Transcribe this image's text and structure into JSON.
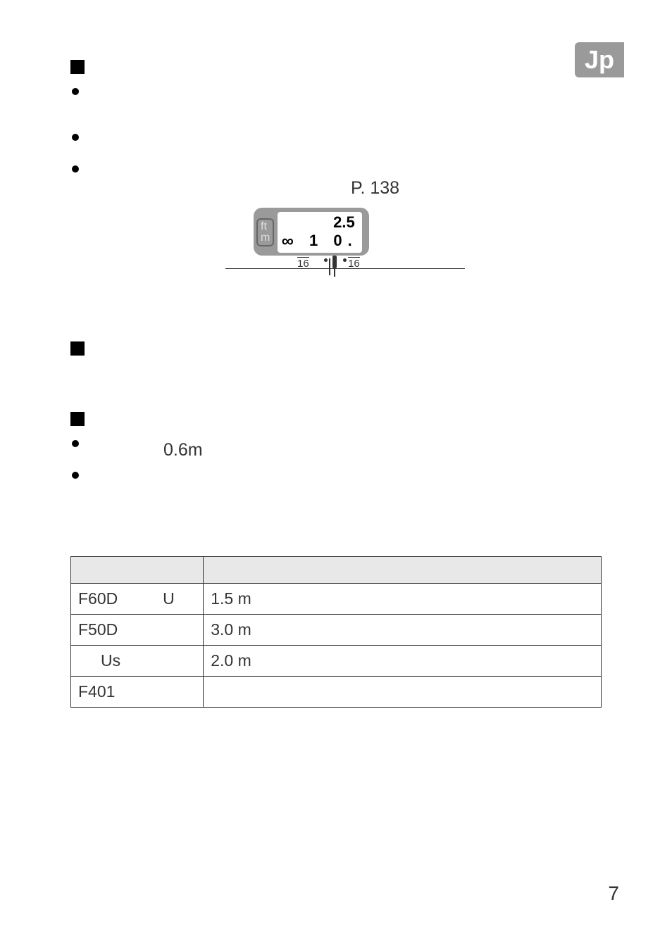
{
  "lang_badge": "Jp",
  "page_ref": "P. 138",
  "distance_window": {
    "unit_top": "ft",
    "unit_bottom": "m",
    "readout_top": "2.5",
    "readout_bottom_left": "1",
    "readout_bottom_right": "0.",
    "scale_left": "16",
    "scale_right": "16"
  },
  "text_06m": "0.6m",
  "table": {
    "rows": [
      {
        "col1_a": "F60D",
        "col1_b": "U",
        "col2": "1.5 m"
      },
      {
        "col1_a": "F50D",
        "col1_b": "",
        "col2": "3.0 m"
      },
      {
        "col1_a": "",
        "col1_b": "Us",
        "col2": "2.0 m"
      },
      {
        "col1_a": "F401",
        "col1_b": "",
        "col2": ""
      }
    ]
  },
  "page_number": "7",
  "colors": {
    "badge_bg": "#9a9a9a",
    "badge_text": "#ffffff",
    "header_bg": "#e8e8e8",
    "border": "#333333",
    "text": "#333333"
  }
}
